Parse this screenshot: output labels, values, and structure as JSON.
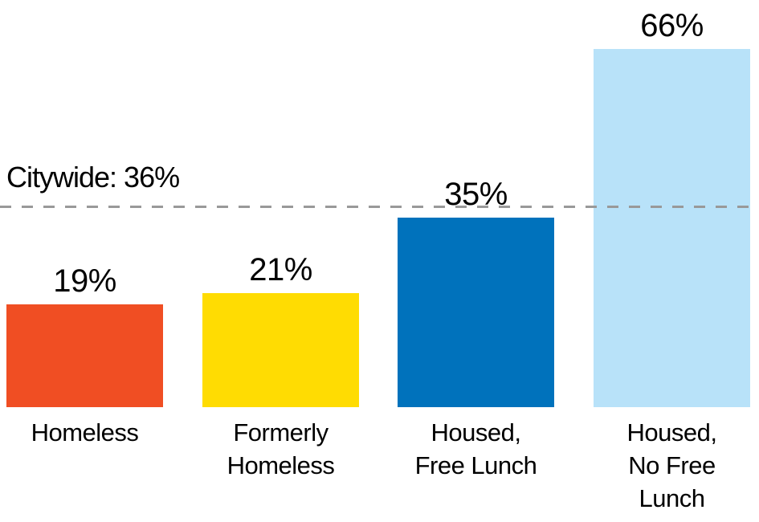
{
  "chart_data": {
    "type": "bar",
    "title": "",
    "categories": [
      "Homeless",
      "Formerly Homeless",
      "Housed, Free Lunch",
      "Housed, No Free Lunch"
    ],
    "category_lines": [
      [
        "Homeless"
      ],
      [
        "Formerly",
        "Homeless"
      ],
      [
        "Housed,",
        "Free Lunch"
      ],
      [
        "Housed,",
        "No Free",
        "Lunch"
      ]
    ],
    "values": [
      19,
      21,
      35,
      66
    ],
    "value_labels": [
      "19%",
      "21%",
      "35%",
      "66%"
    ],
    "colors": [
      "#F04E23",
      "#FFDC02",
      "#0072BC",
      "#B8E2F9"
    ],
    "reference_line": {
      "label": "Citywide: 36%",
      "value": 36,
      "color": "#999999",
      "style": "dashed"
    },
    "ylim": [
      0,
      70
    ],
    "grid": false,
    "axes_visible": false,
    "legend": "none",
    "text_color": "#000000"
  }
}
